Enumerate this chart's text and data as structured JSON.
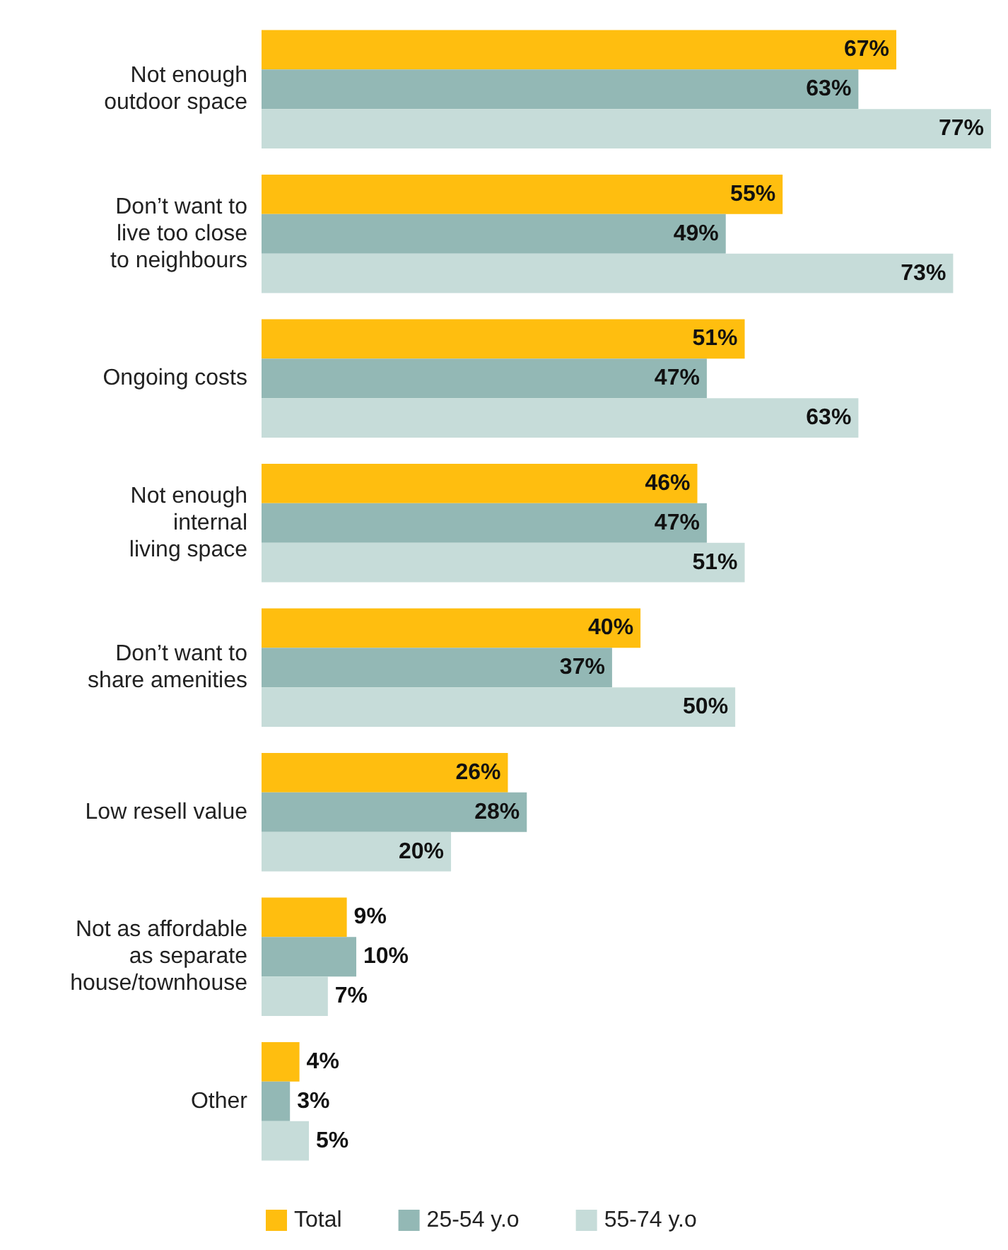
{
  "chart_data": {
    "type": "bar",
    "orientation": "horizontal",
    "legend": "bottom left",
    "categories": [
      "Not enough\noutdoor space",
      "Don’t want to\nlive too close\nto neighbours",
      "Ongoing costs",
      "Not enough\ninternal\nliving space",
      "Don’t want to\nshare amenities",
      "Low resell value",
      "Not as affordable\nas separate\nhouse/townhouse",
      "Other"
    ],
    "series": [
      {
        "name": "Total",
        "color": "#ffbe0f",
        "values": [
          67,
          55,
          51,
          46,
          40,
          26,
          9,
          4
        ],
        "value_labels": [
          "67%",
          "55%",
          "51%",
          "46%",
          "40%",
          "26%",
          "9%",
          "4%"
        ]
      },
      {
        "name": "25-54 y.o",
        "color": "#93b8b5",
        "values": [
          63,
          49,
          47,
          47,
          37,
          28,
          10,
          3
        ],
        "value_labels": [
          "63%",
          "49%",
          "47%",
          "47%",
          "37%",
          "28%",
          "10%",
          "3%"
        ]
      },
      {
        "name": "55-74 y.o",
        "color": "#c6dcd9",
        "values": [
          77,
          73,
          63,
          51,
          50,
          20,
          7,
          5
        ],
        "value_labels": [
          "77%",
          "73%",
          "63%",
          "51%",
          "50%",
          "20%",
          "7%",
          "5%"
        ]
      }
    ]
  }
}
